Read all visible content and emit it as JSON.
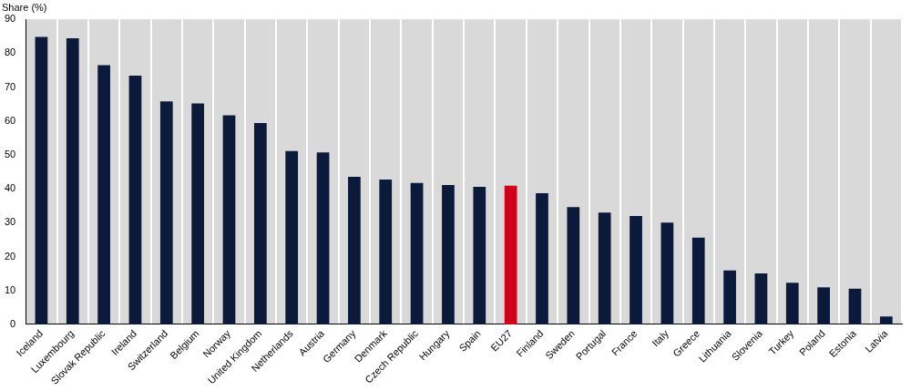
{
  "chart_data": {
    "type": "bar",
    "y_label": "Share (%)",
    "categories": [
      "Iceland",
      "Luxembourg",
      "Slovak Republic",
      "Ireland",
      "Switzerland",
      "Belgium",
      "Norway",
      "United Kingdom",
      "Netherlands",
      "Austria",
      "Germany",
      "Denmark",
      "Czech Republic",
      "Hungary",
      "Spain",
      "EU27",
      "Finland",
      "Sweden",
      "Portugal",
      "France",
      "Italy",
      "Greece",
      "Lithuania",
      "Slovenia",
      "Turkey",
      "Poland",
      "Estonia",
      "Latvia"
    ],
    "values": [
      84.8,
      84.4,
      76.5,
      73.4,
      65.8,
      65.2,
      61.7,
      59.4,
      51.1,
      50.7,
      43.5,
      42.7,
      41.7,
      41.1,
      40.6,
      40.9,
      38.7,
      34.6,
      33.0,
      32.0,
      30.0,
      25.6,
      15.9,
      15.0,
      12.3,
      10.9,
      10.5,
      2.3
    ],
    "colors": [
      "#0b1a3a",
      "#0b1a3a",
      "#0b1a3a",
      "#0b1a3a",
      "#0b1a3a",
      "#0b1a3a",
      "#0b1a3a",
      "#0b1a3a",
      "#0b1a3a",
      "#0b1a3a",
      "#0b1a3a",
      "#0b1a3a",
      "#0b1a3a",
      "#0b1a3a",
      "#0b1a3a",
      "#d0021b",
      "#0b1a3a",
      "#0b1a3a",
      "#0b1a3a",
      "#0b1a3a",
      "#0b1a3a",
      "#0b1a3a",
      "#0b1a3a",
      "#0b1a3a",
      "#0b1a3a",
      "#0b1a3a",
      "#0b1a3a",
      "#0b1a3a"
    ],
    "ylim": [
      0,
      90
    ],
    "yticks": [
      0,
      10,
      20,
      30,
      40,
      50,
      60,
      70,
      80,
      90
    ],
    "grid": true
  }
}
